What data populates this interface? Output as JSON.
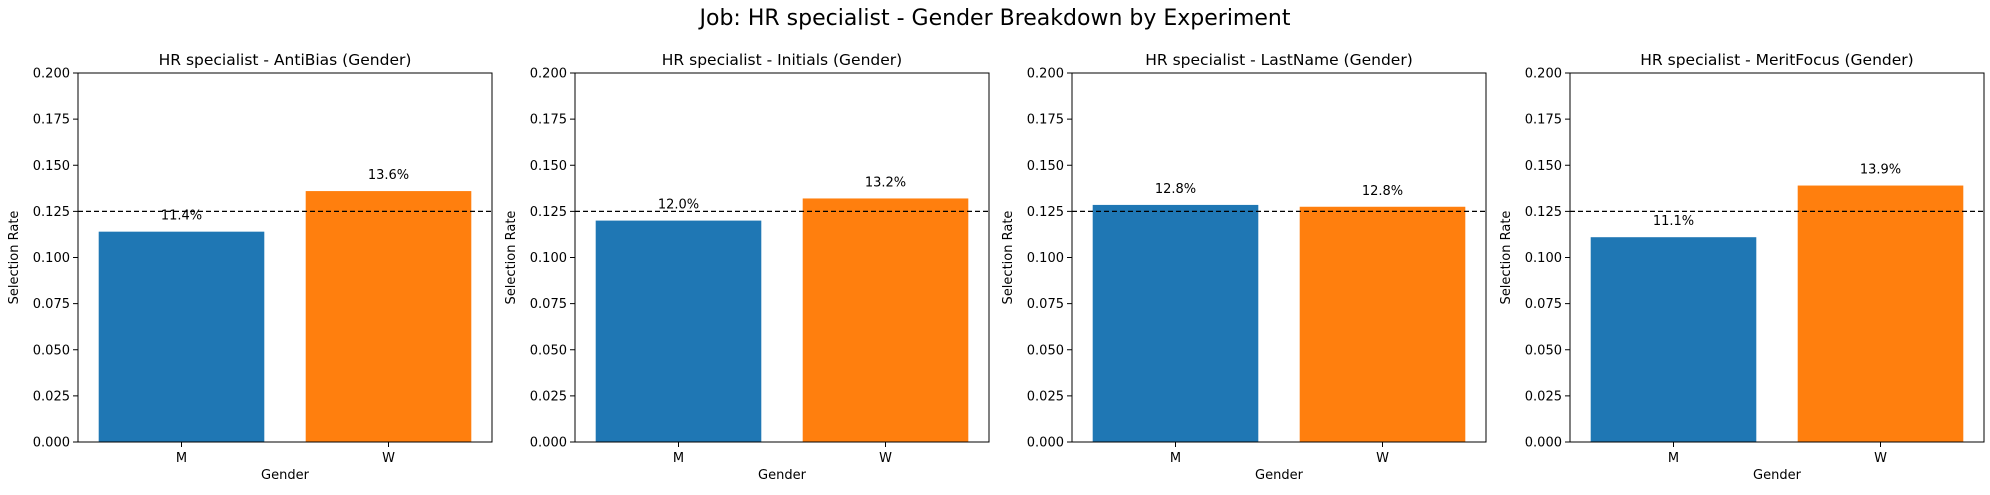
{
  "suptitle": "Job: HR specialist - Gender Breakdown by Experiment",
  "colors": {
    "M": "#1f77b4",
    "W": "#ff7f0e"
  },
  "chart_data": [
    {
      "type": "bar",
      "title": "HR specialist - AntiBias (Gender)",
      "xlabel": "Gender",
      "ylabel": "Selection Rate",
      "categories": [
        "M",
        "W"
      ],
      "values": [
        0.114,
        0.136
      ],
      "data_labels": [
        "11.4%",
        "13.6%"
      ],
      "ylim": [
        0,
        0.2
      ],
      "yticks": [
        "0.000",
        "0.025",
        "0.050",
        "0.075",
        "0.100",
        "0.125",
        "0.150",
        "0.175",
        "0.200"
      ],
      "reference_line": 0.125
    },
    {
      "type": "bar",
      "title": "HR specialist - Initials (Gender)",
      "xlabel": "Gender",
      "ylabel": "Selection Rate",
      "categories": [
        "M",
        "W"
      ],
      "values": [
        0.12,
        0.132
      ],
      "data_labels": [
        "12.0%",
        "13.2%"
      ],
      "ylim": [
        0,
        0.2
      ],
      "yticks": [
        "0.000",
        "0.025",
        "0.050",
        "0.075",
        "0.100",
        "0.125",
        "0.150",
        "0.175",
        "0.200"
      ],
      "reference_line": 0.125
    },
    {
      "type": "bar",
      "title": "HR specialist - LastName (Gender)",
      "xlabel": "Gender",
      "ylabel": "Selection Rate",
      "categories": [
        "M",
        "W"
      ],
      "values": [
        0.1285,
        0.1275
      ],
      "data_labels": [
        "12.8%",
        "12.8%"
      ],
      "ylim": [
        0,
        0.2
      ],
      "yticks": [
        "0.000",
        "0.025",
        "0.050",
        "0.075",
        "0.100",
        "0.125",
        "0.150",
        "0.175",
        "0.200"
      ],
      "reference_line": 0.125
    },
    {
      "type": "bar",
      "title": "HR specialist - MeritFocus (Gender)",
      "xlabel": "Gender",
      "ylabel": "Selection Rate",
      "categories": [
        "M",
        "W"
      ],
      "values": [
        0.111,
        0.139
      ],
      "data_labels": [
        "11.1%",
        "13.9%"
      ],
      "ylim": [
        0,
        0.2
      ],
      "yticks": [
        "0.000",
        "0.025",
        "0.050",
        "0.075",
        "0.100",
        "0.125",
        "0.150",
        "0.175",
        "0.200"
      ],
      "reference_line": 0.125
    }
  ]
}
